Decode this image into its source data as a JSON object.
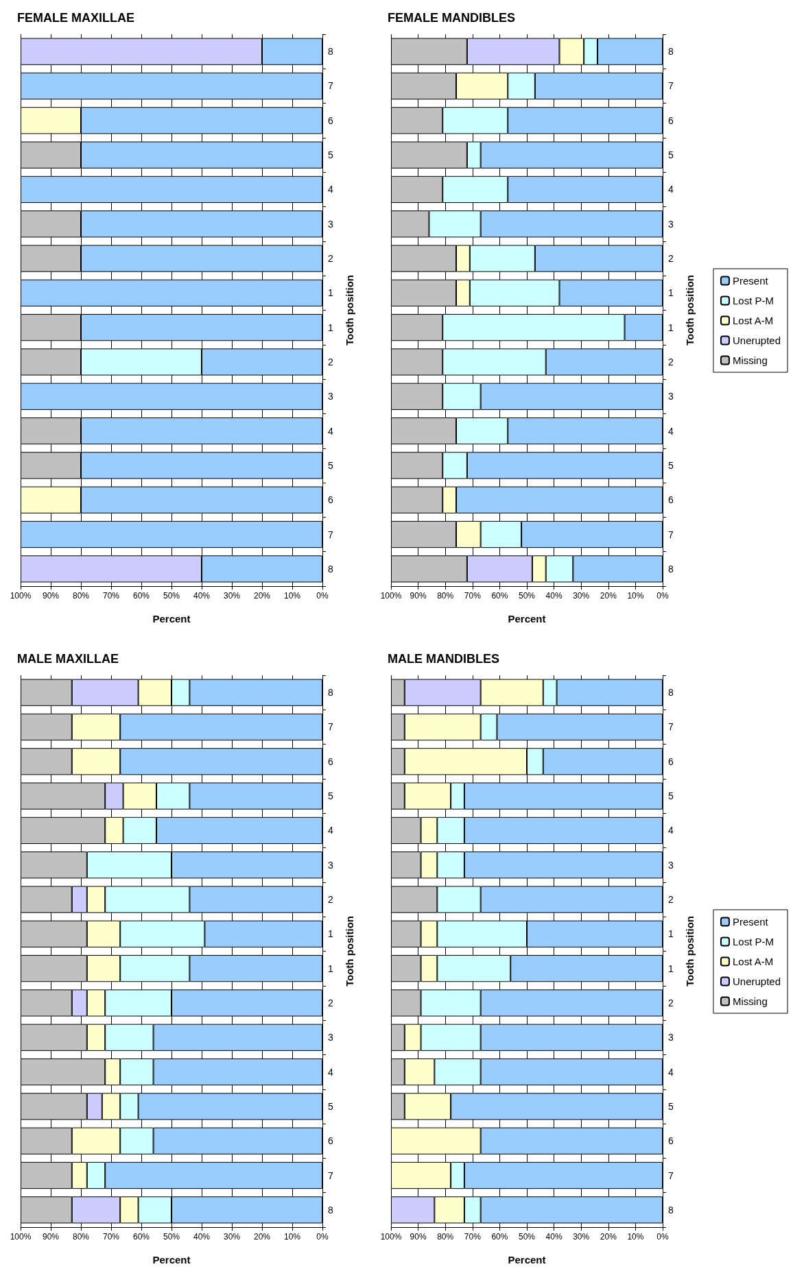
{
  "chart_data": [
    {
      "type": "bar",
      "orientation": "horizontal",
      "stacked": true,
      "title": "FEMALE MAXILLAE",
      "xlabel": "Percent",
      "ylabel": "Tooth position",
      "categories": [
        "8",
        "7",
        "6",
        "5",
        "4",
        "3",
        "2",
        "1",
        "1",
        "2",
        "3",
        "4",
        "5",
        "6",
        "7",
        "8"
      ],
      "xlim": [
        100,
        0
      ],
      "xticks": [
        {
          "value": 100,
          "label": "100%"
        },
        {
          "value": 90,
          "label": "90%"
        },
        {
          "value": 80,
          "label": "80%"
        },
        {
          "value": 70,
          "label": "70%"
        },
        {
          "value": 60,
          "label": "60%"
        },
        {
          "value": 50,
          "label": "50%"
        },
        {
          "value": 40,
          "label": "40%"
        },
        {
          "value": 30,
          "label": "30%"
        },
        {
          "value": 20,
          "label": "20%"
        },
        {
          "value": 10,
          "label": "10%"
        },
        {
          "value": 0,
          "label": "0%"
        }
      ],
      "grid": "x",
      "legend": false,
      "series": [
        {
          "color": "#99ccff",
          "values": [
            20,
            100,
            80,
            80,
            100,
            80,
            80,
            100,
            80,
            40,
            100,
            80,
            80,
            80,
            100,
            40
          ]
        },
        {
          "color": "#ccffff",
          "values": [
            0,
            0,
            0,
            0,
            0,
            0,
            0,
            0,
            0,
            40,
            0,
            0,
            0,
            0,
            0,
            0
          ]
        },
        {
          "color": "#ffffcc",
          "values": [
            0,
            0,
            20,
            0,
            0,
            0,
            0,
            0,
            0,
            0,
            0,
            0,
            0,
            20,
            0,
            0
          ]
        },
        {
          "color": "#ccccff",
          "values": [
            80,
            0,
            0,
            0,
            0,
            0,
            0,
            0,
            0,
            0,
            0,
            0,
            0,
            0,
            0,
            60
          ]
        },
        {
          "color": "#c0c0c0",
          "values": [
            0,
            0,
            0,
            20,
            0,
            20,
            20,
            0,
            20,
            20,
            0,
            20,
            20,
            0,
            0,
            0
          ]
        }
      ]
    },
    {
      "type": "bar",
      "orientation": "horizontal",
      "stacked": true,
      "title": "FEMALE MANDIBLES",
      "xlabel": "Percent",
      "ylabel": "Tooth position",
      "categories": [
        "8",
        "7",
        "6",
        "5",
        "4",
        "3",
        "2",
        "1",
        "1",
        "2",
        "3",
        "4",
        "5",
        "6",
        "7",
        "8"
      ],
      "xlim": [
        100,
        0
      ],
      "xticks": [
        {
          "value": 100,
          "label": "100%"
        },
        {
          "value": 90,
          "label": "90%"
        },
        {
          "value": 80,
          "label": "80%"
        },
        {
          "value": 70,
          "label": "70%"
        },
        {
          "value": 60,
          "label": "60%"
        },
        {
          "value": 50,
          "label": "50%"
        },
        {
          "value": 40,
          "label": "40%"
        },
        {
          "value": 30,
          "label": "30%"
        },
        {
          "value": 20,
          "label": "20%"
        },
        {
          "value": 10,
          "label": "10%"
        },
        {
          "value": 0,
          "label": "0%"
        }
      ],
      "grid": "x",
      "legend": "right",
      "series": [
        {
          "name": "Present",
          "color": "#99ccff",
          "values": [
            24,
            47,
            57,
            67,
            57,
            67,
            47,
            38,
            14,
            43,
            67,
            57,
            72,
            76,
            52,
            33
          ]
        },
        {
          "name": "Lost P-M",
          "color": "#ccffff",
          "values": [
            5,
            10,
            24,
            5,
            24,
            19,
            24,
            33,
            67,
            38,
            14,
            19,
            9,
            0,
            15,
            10
          ]
        },
        {
          "name": "Lost A-M",
          "color": "#ffffcc",
          "values": [
            9,
            19,
            0,
            0,
            0,
            0,
            5,
            5,
            0,
            0,
            0,
            0,
            0,
            5,
            9,
            5
          ]
        },
        {
          "name": "Unerupted",
          "color": "#ccccff",
          "values": [
            34,
            0,
            0,
            0,
            0,
            0,
            0,
            0,
            0,
            0,
            0,
            0,
            0,
            0,
            0,
            24
          ]
        },
        {
          "name": "Missing",
          "color": "#c0c0c0",
          "values": [
            28,
            24,
            19,
            28,
            19,
            14,
            24,
            24,
            19,
            19,
            19,
            24,
            19,
            19,
            24,
            28
          ]
        }
      ]
    },
    {
      "type": "bar",
      "orientation": "horizontal",
      "stacked": true,
      "title": "MALE MAXILLAE",
      "xlabel": "Percent",
      "ylabel": "Tooth position",
      "categories": [
        "8",
        "7",
        "6",
        "5",
        "4",
        "3",
        "2",
        "1",
        "1",
        "2",
        "3",
        "4",
        "5",
        "6",
        "7",
        "8"
      ],
      "xlim": [
        100,
        0
      ],
      "xticks": [
        {
          "value": 100,
          "label": "100%"
        },
        {
          "value": 90,
          "label": "90%"
        },
        {
          "value": 80,
          "label": "80%"
        },
        {
          "value": 70,
          "label": "70%"
        },
        {
          "value": 60,
          "label": "60%"
        },
        {
          "value": 50,
          "label": "50%"
        },
        {
          "value": 40,
          "label": "40%"
        },
        {
          "value": 30,
          "label": "30%"
        },
        {
          "value": 20,
          "label": "20%"
        },
        {
          "value": 10,
          "label": "10%"
        },
        {
          "value": 0,
          "label": "0%"
        }
      ],
      "grid": "x",
      "legend": false,
      "series": [
        {
          "color": "#99ccff",
          "values": [
            44,
            67,
            67,
            44,
            55,
            50,
            44,
            39,
            44,
            50,
            56,
            56,
            61,
            56,
            72,
            50
          ]
        },
        {
          "color": "#ccffff",
          "values": [
            6,
            0,
            0,
            11,
            11,
            28,
            28,
            28,
            23,
            22,
            16,
            11,
            6,
            11,
            6,
            11
          ]
        },
        {
          "color": "#ffffcc",
          "values": [
            11,
            16,
            16,
            11,
            6,
            0,
            6,
            11,
            11,
            6,
            6,
            5,
            6,
            16,
            5,
            6
          ]
        },
        {
          "color": "#ccccff",
          "values": [
            22,
            0,
            0,
            6,
            0,
            0,
            5,
            0,
            0,
            5,
            0,
            0,
            5,
            0,
            0,
            16
          ]
        },
        {
          "color": "#c0c0c0",
          "values": [
            17,
            17,
            17,
            28,
            28,
            22,
            17,
            22,
            22,
            17,
            22,
            28,
            22,
            17,
            17,
            17
          ]
        }
      ]
    },
    {
      "type": "bar",
      "orientation": "horizontal",
      "stacked": true,
      "title": "MALE MANDIBLES",
      "xlabel": "Percent",
      "ylabel": "Tooth position",
      "categories": [
        "8",
        "7",
        "6",
        "5",
        "4",
        "3",
        "2",
        "1",
        "1",
        "2",
        "3",
        "4",
        "5",
        "6",
        "7",
        "8"
      ],
      "xlim": [
        100,
        0
      ],
      "xticks": [
        {
          "value": 100,
          "label": "100%"
        },
        {
          "value": 90,
          "label": "90%"
        },
        {
          "value": 80,
          "label": "80%"
        },
        {
          "value": 70,
          "label": "70%"
        },
        {
          "value": 60,
          "label": "60%"
        },
        {
          "value": 50,
          "label": "50%"
        },
        {
          "value": 40,
          "label": "40%"
        },
        {
          "value": 30,
          "label": "30%"
        },
        {
          "value": 20,
          "label": "20%"
        },
        {
          "value": 10,
          "label": "10%"
        },
        {
          "value": 0,
          "label": "0%"
        }
      ],
      "grid": "x",
      "legend": "right",
      "series": [
        {
          "name": "Present",
          "color": "#99ccff",
          "values": [
            39,
            61,
            44,
            73,
            73,
            73,
            67,
            50,
            56,
            67,
            67,
            67,
            78,
            67,
            73,
            67
          ]
        },
        {
          "name": "Lost P-M",
          "color": "#ccffff",
          "values": [
            5,
            6,
            6,
            5,
            10,
            10,
            16,
            33,
            27,
            22,
            22,
            17,
            0,
            0,
            5,
            6
          ]
        },
        {
          "name": "Lost A-M",
          "color": "#ffffcc",
          "values": [
            23,
            28,
            45,
            17,
            6,
            6,
            0,
            6,
            6,
            0,
            6,
            11,
            17,
            33,
            22,
            11
          ]
        },
        {
          "name": "Unerupted",
          "color": "#ccccff",
          "values": [
            28,
            0,
            0,
            0,
            0,
            0,
            0,
            0,
            0,
            0,
            0,
            0,
            0,
            0,
            0,
            16
          ]
        },
        {
          "name": "Missing",
          "color": "#c0c0c0",
          "values": [
            5,
            5,
            5,
            5,
            11,
            11,
            17,
            11,
            11,
            11,
            5,
            5,
            5,
            0,
            0,
            0
          ]
        }
      ]
    }
  ]
}
